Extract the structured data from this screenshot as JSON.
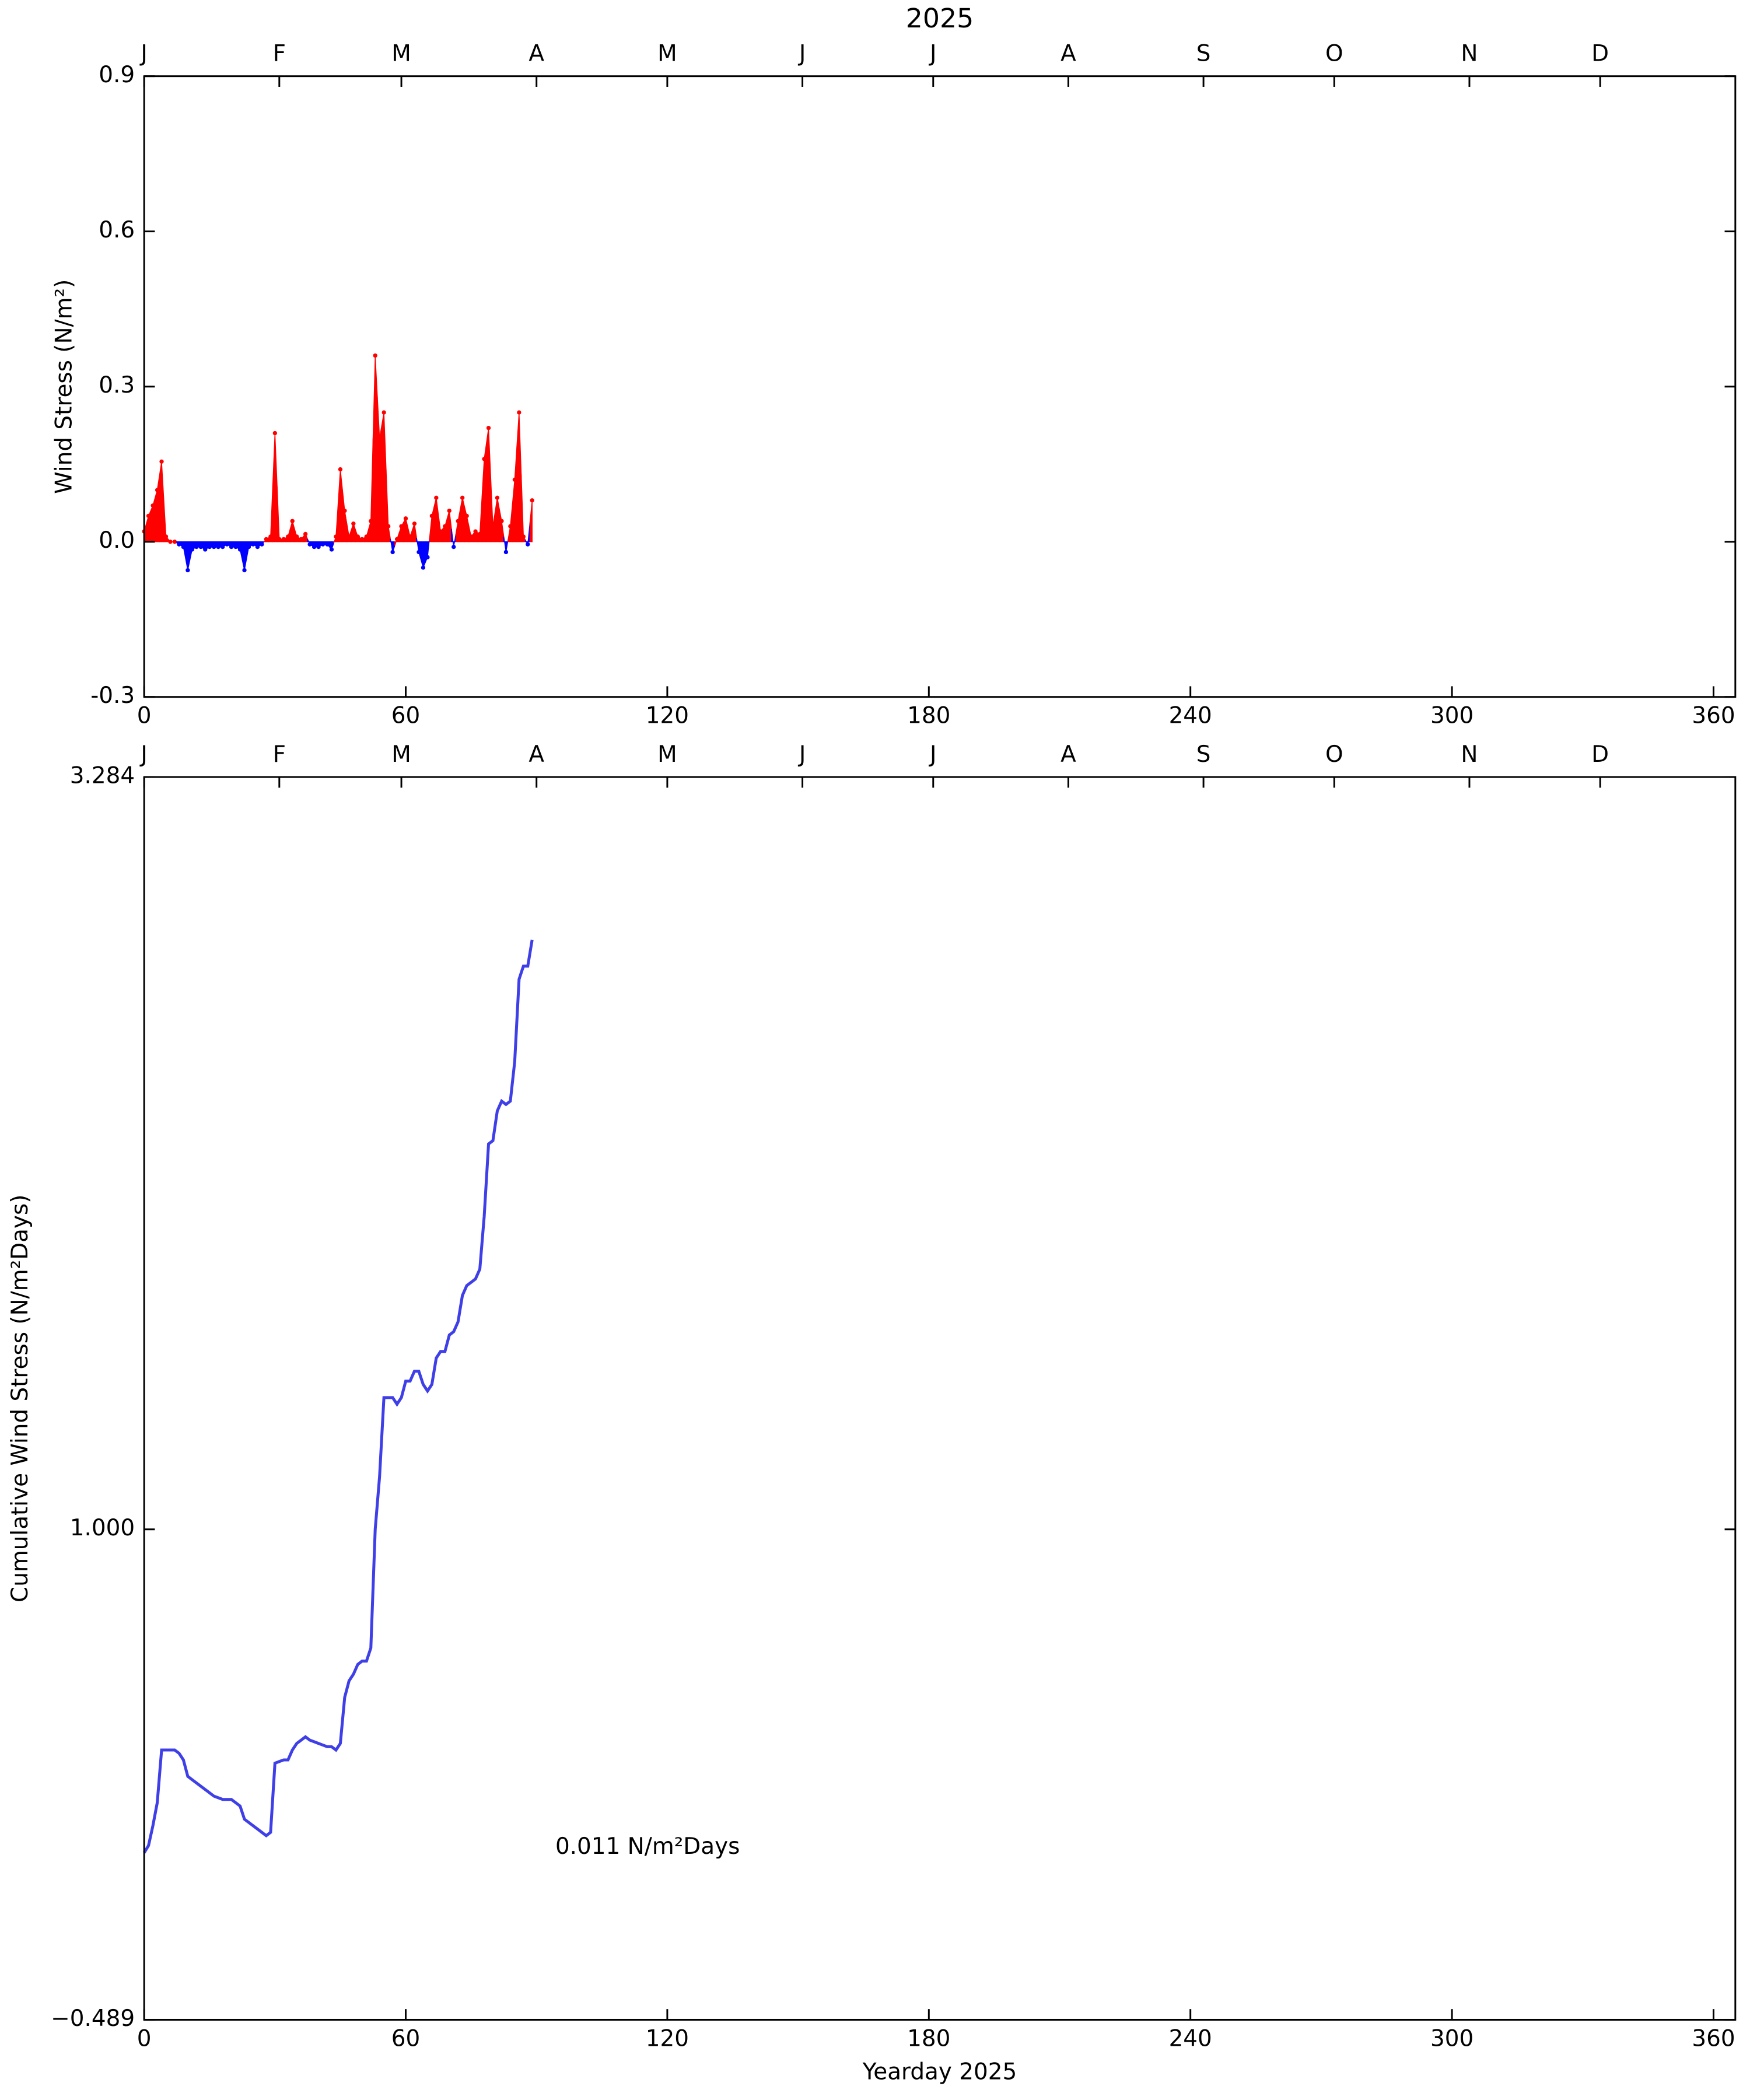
{
  "chart_data": [
    {
      "type": "area",
      "title": "2025",
      "ylabel": "Wind Stress (N/m²)",
      "x": [
        0,
        1,
        2,
        3,
        4,
        5,
        6,
        7,
        8,
        9,
        10,
        11,
        12,
        13,
        14,
        15,
        16,
        17,
        18,
        19,
        20,
        21,
        22,
        23,
        24,
        25,
        26,
        27,
        28,
        29,
        30,
        31,
        32,
        33,
        34,
        35,
        36,
        37,
        38,
        39,
        40,
        41,
        42,
        43,
        44,
        45,
        46,
        47,
        48,
        49,
        50,
        51,
        52,
        53,
        54,
        55,
        56,
        57,
        58,
        59,
        60,
        61,
        62,
        63,
        64,
        65,
        66,
        67,
        68,
        69,
        70,
        71,
        72,
        73,
        74,
        75,
        76,
        77,
        78,
        79,
        80,
        81,
        82,
        83,
        84,
        85,
        86,
        87,
        88,
        89
      ],
      "values": [
        0.02,
        0.05,
        0.07,
        0.1,
        0.155,
        0.01,
        0,
        0,
        -0.005,
        -0.01,
        -0.055,
        -0.015,
        -0.01,
        -0.01,
        -0.015,
        -0.01,
        -0.01,
        -0.01,
        -0.01,
        -0.005,
        -0.01,
        -0.01,
        -0.015,
        -0.055,
        -0.01,
        -0.005,
        -0.01,
        -0.005,
        0.005,
        0.01,
        0.21,
        0.005,
        0.005,
        0.01,
        0.04,
        0.01,
        0.005,
        0.015,
        -0.005,
        -0.01,
        -0.01,
        -0.005,
        -0.005,
        -0.015,
        0.01,
        0.14,
        0.06,
        0.01,
        0.035,
        0.01,
        0.005,
        0.01,
        0.04,
        0.36,
        0.2,
        0.25,
        0.03,
        -0.02,
        0.005,
        0.03,
        0.045,
        0.01,
        0.035,
        -0.02,
        -0.05,
        -0.03,
        0.05,
        0.085,
        0.02,
        0.03,
        0.06,
        -0.01,
        0.04,
        0.085,
        0.05,
        0.01,
        0.02,
        0.015,
        0.16,
        0.22,
        0.03,
        0.085,
        0.04,
        -0.02,
        0.03,
        0.12,
        0.25,
        0.01,
        -0.005,
        0.08
      ],
      "positive_color": "#ff0000",
      "negative_color": "#0000ff",
      "xlim": [
        0,
        365
      ],
      "xticks": [
        0,
        60,
        120,
        180,
        240,
        300,
        360
      ],
      "x2ticks": [
        {
          "value": 0,
          "label": "J"
        },
        {
          "value": 31,
          "label": "F"
        },
        {
          "value": 59,
          "label": "M"
        },
        {
          "value": 90,
          "label": "A"
        },
        {
          "value": 120,
          "label": "M"
        },
        {
          "value": 151,
          "label": "J"
        },
        {
          "value": 181,
          "label": "J"
        },
        {
          "value": 212,
          "label": "A"
        },
        {
          "value": 243,
          "label": "S"
        },
        {
          "value": 273,
          "label": "O"
        },
        {
          "value": 304,
          "label": "N"
        },
        {
          "value": 334,
          "label": "D"
        }
      ],
      "ylim": [
        -0.3,
        0.9
      ],
      "yticks": [
        -0.3,
        {
          "value": 0,
          "label": "0.0"
        },
        0.3,
        0.6,
        0.9
      ]
    },
    {
      "type": "line",
      "xlabel": "Yearday 2025",
      "ylabel": "Cumulative Wind Stress (N/m²Days)",
      "annotation": "0.011 N/m²Days",
      "x": [
        0,
        1,
        2,
        3,
        4,
        5,
        6,
        7,
        8,
        9,
        10,
        11,
        12,
        13,
        14,
        15,
        16,
        17,
        18,
        19,
        20,
        21,
        22,
        23,
        24,
        25,
        26,
        27,
        28,
        29,
        30,
        31,
        32,
        33,
        34,
        35,
        36,
        37,
        38,
        39,
        40,
        41,
        42,
        43,
        44,
        45,
        46,
        47,
        48,
        49,
        50,
        51,
        52,
        53,
        54,
        55,
        56,
        57,
        58,
        59,
        60,
        61,
        62,
        63,
        64,
        65,
        66,
        67,
        68,
        69,
        70,
        71,
        72,
        73,
        74,
        75,
        76,
        77,
        78,
        79,
        80,
        81,
        82,
        83,
        84,
        85,
        86,
        87,
        88,
        89
      ],
      "values": [
        0.018,
        0.04,
        0.1,
        0.17,
        0.33,
        0.33,
        0.33,
        0.33,
        0.32,
        0.3,
        0.25,
        0.24,
        0.23,
        0.22,
        0.21,
        0.2,
        0.19,
        0.185,
        0.18,
        0.18,
        0.18,
        0.17,
        0.16,
        0.12,
        0.11,
        0.1,
        0.09,
        0.08,
        0.07,
        0.08,
        0.29,
        0.295,
        0.3,
        0.3,
        0.33,
        0.35,
        0.36,
        0.37,
        0.36,
        0.355,
        0.35,
        0.345,
        0.34,
        0.34,
        0.33,
        0.35,
        0.49,
        0.54,
        0.56,
        0.59,
        0.6,
        0.6,
        0.64,
        1.0,
        1.16,
        1.4,
        1.4,
        1.4,
        1.38,
        1.4,
        1.45,
        1.45,
        1.48,
        1.48,
        1.44,
        1.42,
        1.44,
        1.52,
        1.54,
        1.54,
        1.59,
        1.6,
        1.63,
        1.71,
        1.74,
        1.75,
        1.76,
        1.79,
        1.95,
        2.17,
        2.18,
        2.27,
        2.3,
        2.29,
        2.3,
        2.42,
        2.67,
        2.71,
        2.71,
        2.79
      ],
      "color": "#3f3fe8",
      "xlim": [
        0,
        365
      ],
      "xticks": [
        0,
        60,
        120,
        180,
        240,
        300,
        360
      ],
      "x2ticks": [
        {
          "value": 0,
          "label": "J"
        },
        {
          "value": 31,
          "label": "F"
        },
        {
          "value": 59,
          "label": "M"
        },
        {
          "value": 90,
          "label": "A"
        },
        {
          "value": 120,
          "label": "M"
        },
        {
          "value": 151,
          "label": "J"
        },
        {
          "value": 181,
          "label": "J"
        },
        {
          "value": 212,
          "label": "A"
        },
        {
          "value": 243,
          "label": "S"
        },
        {
          "value": 273,
          "label": "O"
        },
        {
          "value": 304,
          "label": "N"
        },
        {
          "value": 334,
          "label": "D"
        }
      ],
      "ylim": [
        -0.489,
        3.284
      ],
      "yticks": [
        {
          "value": -0.489,
          "label": "−0.489"
        },
        {
          "value": 1,
          "label": "1.000"
        },
        3.284
      ]
    }
  ]
}
